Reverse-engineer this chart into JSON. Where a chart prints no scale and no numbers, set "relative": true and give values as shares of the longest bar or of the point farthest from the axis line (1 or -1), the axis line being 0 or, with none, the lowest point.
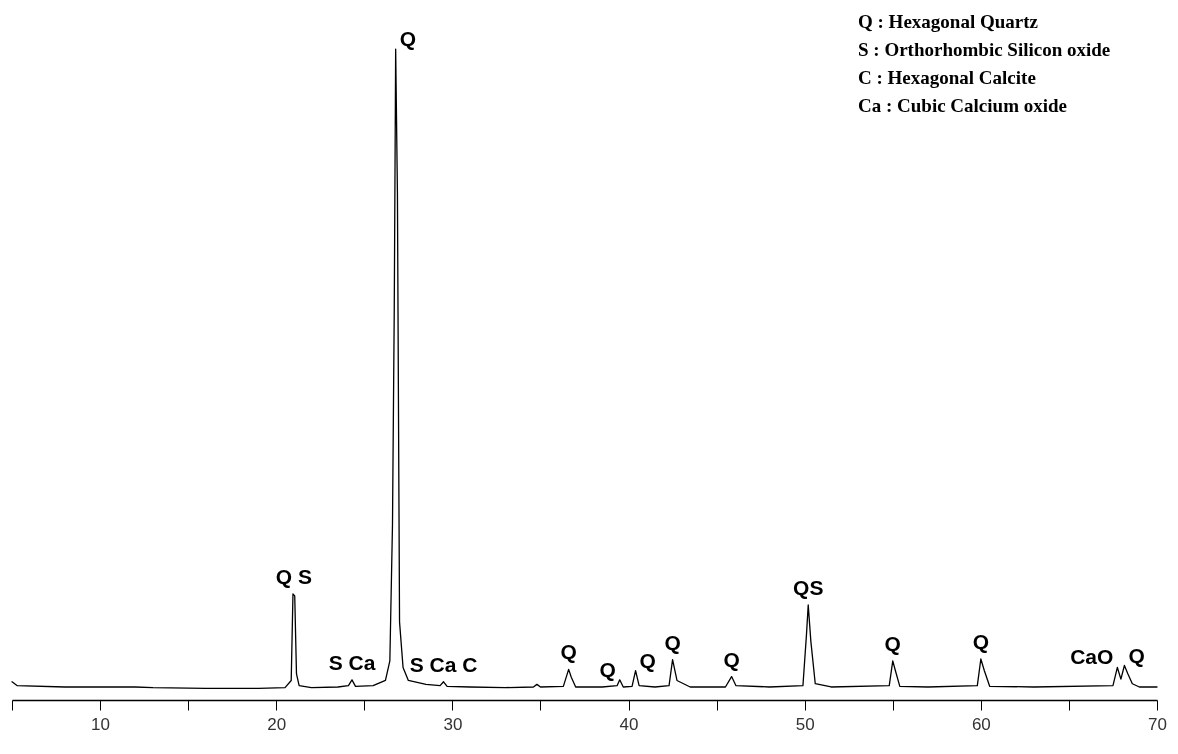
{
  "chart_data": {
    "type": "line",
    "relative": true,
    "xlim": [
      5,
      70
    ],
    "xticks": [
      {
        "value": 5,
        "label": null
      },
      10,
      {
        "value": 15,
        "label": null
      },
      20,
      {
        "value": 25,
        "label": null
      },
      30,
      {
        "value": 35,
        "label": null
      },
      40,
      {
        "value": 45,
        "label": null
      },
      50,
      {
        "value": 55,
        "label": null
      },
      60,
      {
        "value": 65,
        "label": null
      },
      70
    ],
    "tick_labels": "x",
    "grid": false,
    "marker": "none",
    "line_style": "solid",
    "series": [
      {
        "color": "#000000",
        "x": [
          5,
          5.3,
          8,
          12,
          13,
          16,
          19,
          20.5,
          20.85,
          20.95,
          21.05,
          21.15,
          21.3,
          22,
          23.5,
          24.1,
          24.3,
          24.5,
          25.5,
          26.2,
          26.45,
          26.6,
          26.7,
          26.78,
          26.88,
          27.0,
          27.2,
          27.5,
          28.5,
          29.3,
          29.5,
          29.7,
          31,
          33,
          34.6,
          34.8,
          35,
          36.3,
          36.6,
          36.75,
          37,
          38.5,
          39.35,
          39.5,
          39.7,
          40.2,
          40.4,
          40.6,
          41.5,
          42.3,
          42.5,
          42.75,
          43.5,
          45.5,
          45.85,
          46.1,
          48,
          49.9,
          50.1,
          50.2,
          50.35,
          50.6,
          51.5,
          54.8,
          55.0,
          55.15,
          55.4,
          57,
          59.8,
          60.0,
          60.2,
          60.5,
          63,
          67.5,
          67.75,
          67.95,
          68.15,
          68.35,
          68.6,
          69,
          70
        ],
        "values": [
          0.028,
          0.022,
          0.02,
          0.02,
          0.019,
          0.018,
          0.018,
          0.019,
          0.03,
          0.163,
          0.16,
          0.04,
          0.022,
          0.019,
          0.02,
          0.022,
          0.031,
          0.021,
          0.022,
          0.03,
          0.06,
          0.27,
          0.6,
          1.0,
          0.78,
          0.12,
          0.05,
          0.03,
          0.024,
          0.022,
          0.028,
          0.021,
          0.02,
          0.019,
          0.02,
          0.024,
          0.02,
          0.021,
          0.047,
          0.035,
          0.02,
          0.02,
          0.022,
          0.031,
          0.02,
          0.021,
          0.045,
          0.022,
          0.02,
          0.022,
          0.062,
          0.03,
          0.02,
          0.02,
          0.036,
          0.022,
          0.02,
          0.022,
          0.1,
          0.146,
          0.09,
          0.025,
          0.02,
          0.022,
          0.06,
          0.045,
          0.021,
          0.02,
          0.022,
          0.063,
          0.045,
          0.021,
          0.02,
          0.022,
          0.05,
          0.032,
          0.053,
          0.04,
          0.025,
          0.02,
          0.02
        ]
      }
    ],
    "annotations": [
      {
        "text": "Q S",
        "x": 21.0,
        "y": 0.163
      },
      {
        "text": "S Ca",
        "x": 24.3,
        "y": 0.031
      },
      {
        "text": "Q",
        "x": 26.78,
        "y": 1.0
      },
      {
        "text": "S Ca C",
        "x": 29.5,
        "y": 0.028
      },
      {
        "text": "Q",
        "x": 36.6,
        "y": 0.047
      },
      {
        "text": "Q",
        "x": 39.5,
        "y": 0.031
      },
      {
        "text": "Q",
        "x": 40.4,
        "y": 0.045
      },
      {
        "text": "Q",
        "x": 42.5,
        "y": 0.062
      },
      {
        "text": "Q",
        "x": 45.85,
        "y": 0.036
      },
      {
        "text": "QS",
        "x": 50.2,
        "y": 0.146
      },
      {
        "text": "Q",
        "x": 55.0,
        "y": 0.06
      },
      {
        "text": "Q",
        "x": 60.0,
        "y": 0.063
      },
      {
        "text": "CaO",
        "x": 67.75,
        "y": 0.05
      },
      {
        "text": "Q",
        "x": 68.15,
        "y": 0.053
      },
      "Q : Hexagonal Quartz",
      "S : Orthorhombic Silicon oxide",
      "C : Hexagonal Calcite",
      "Ca : Cubic Calcium oxide"
    ]
  }
}
